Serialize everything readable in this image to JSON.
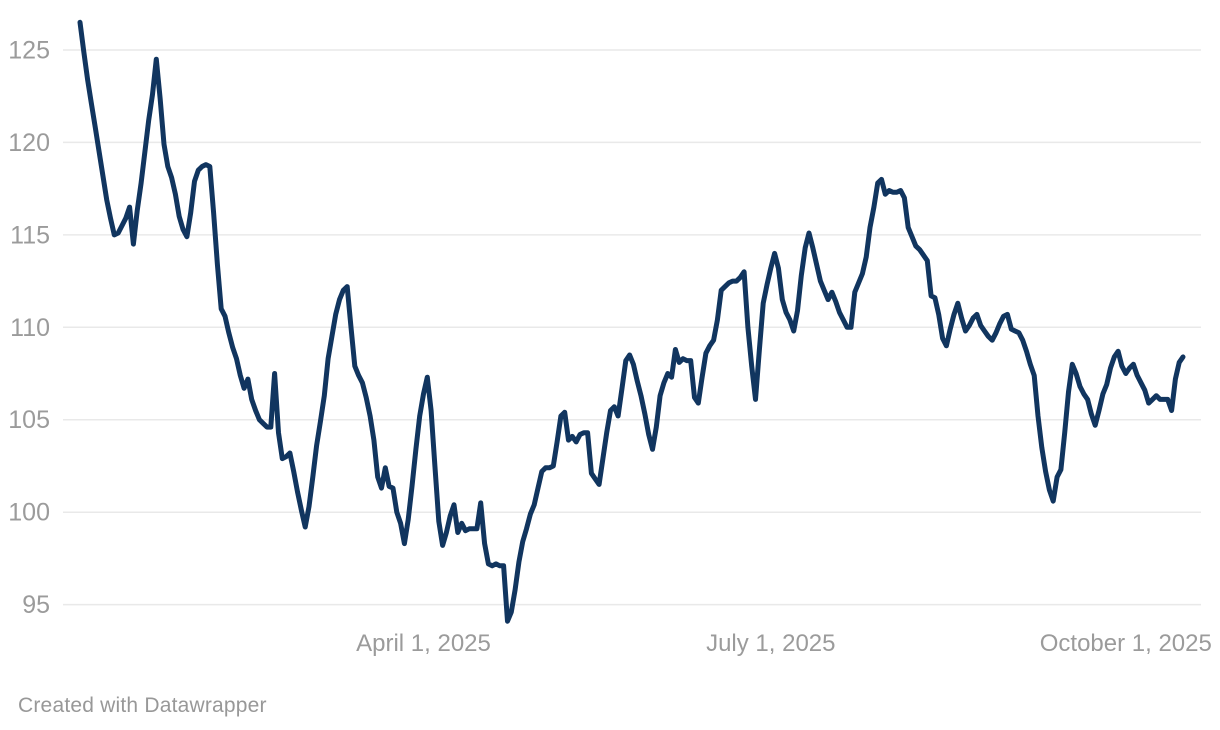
{
  "page": {
    "background": "#ffffff"
  },
  "footer": {
    "text": "Created with Datawrapper"
  },
  "theme": {
    "line_color": "#11355f",
    "grid_color": "#e9e9e9",
    "axis_label_color": "#9b9b9b",
    "footer_color": "#989898"
  },
  "chart_data": {
    "type": "line",
    "title": "",
    "xlabel": "",
    "ylabel": "",
    "grid": true,
    "legend": false,
    "y_axis": {
      "ticks": [
        125,
        120,
        115,
        110,
        105,
        100,
        95
      ],
      "range_shown": [
        95,
        125
      ]
    },
    "x_axis": {
      "ticks": [
        {
          "label": "April 1, 2025",
          "day": 90
        },
        {
          "label": "July 1, 2025",
          "day": 181
        },
        {
          "label": "October 1, 2025",
          "day": 274
        }
      ],
      "unit": "days since first observation (daily series, Jan-Oct 2025)"
    },
    "series": [
      {
        "name": "index value",
        "day_start": 0,
        "day_step": 1,
        "values": [
          126.5,
          124.9,
          123.4,
          122.1,
          120.8,
          119.5,
          118.2,
          116.9,
          115.9,
          115.0,
          115.1,
          115.5,
          115.9,
          116.5,
          114.5,
          116.3,
          117.8,
          119.5,
          121.2,
          122.6,
          124.5,
          122.4,
          119.9,
          118.7,
          118.1,
          117.2,
          116.0,
          115.3,
          114.9,
          116.2,
          117.9,
          118.5,
          118.7,
          118.8,
          118.7,
          116.2,
          113.4,
          111.0,
          110.6,
          109.7,
          108.9,
          108.3,
          107.4,
          106.7,
          107.2,
          106.1,
          105.5,
          105.0,
          104.8,
          104.6,
          104.6,
          107.5,
          104.3,
          102.9,
          103.0,
          103.2,
          102.2,
          101.1,
          100.1,
          99.2,
          100.3,
          101.9,
          103.6,
          104.9,
          106.3,
          108.3,
          109.5,
          110.7,
          111.5,
          112.0,
          112.2,
          110.0,
          107.9,
          107.4,
          107.0,
          106.2,
          105.2,
          103.9,
          101.9,
          101.3,
          102.4,
          101.4,
          101.3,
          100.0,
          99.4,
          98.3,
          99.6,
          101.4,
          103.4,
          105.2,
          106.4,
          107.3,
          105.5,
          102.5,
          99.5,
          98.2,
          98.9,
          99.8,
          100.4,
          98.9,
          99.4,
          99.0,
          99.1,
          99.1,
          99.1,
          100.5,
          98.3,
          97.2,
          97.1,
          97.2,
          97.1,
          97.1,
          94.1,
          94.6,
          95.8,
          97.3,
          98.4,
          99.1,
          99.9,
          100.4,
          101.3,
          102.2,
          102.4,
          102.4,
          102.5,
          103.8,
          105.2,
          105.4,
          103.9,
          104.1,
          103.8,
          104.2,
          104.3,
          104.3,
          102.1,
          101.8,
          101.5,
          102.9,
          104.3,
          105.5,
          105.7,
          105.2,
          106.7,
          108.2,
          108.5,
          108.0,
          107.1,
          106.3,
          105.3,
          104.2,
          103.4,
          104.6,
          106.3,
          107.0,
          107.5,
          107.3,
          108.8,
          108.1,
          108.3,
          108.2,
          108.2,
          106.2,
          105.9,
          107.3,
          108.6,
          109.0,
          109.3,
          110.4,
          112.0,
          112.2,
          112.4,
          112.5,
          112.5,
          112.7,
          113.0,
          110.0,
          107.9,
          106.1,
          108.8,
          111.3,
          112.3,
          113.2,
          114.0,
          113.2,
          111.5,
          110.8,
          110.4,
          109.8,
          110.9,
          112.8,
          114.3,
          115.1,
          114.3,
          113.4,
          112.5,
          112.0,
          111.5,
          111.9,
          111.4,
          110.8,
          110.4,
          110.0,
          110.0,
          111.9,
          112.4,
          112.9,
          113.8,
          115.4,
          116.5,
          117.8,
          118.0,
          117.2,
          117.4,
          117.3,
          117.3,
          117.4,
          117.0,
          115.4,
          114.9,
          114.4,
          114.2,
          113.9,
          113.6,
          111.7,
          111.6,
          110.7,
          109.4,
          109.0,
          109.9,
          110.7,
          111.3,
          110.5,
          109.8,
          110.1,
          110.5,
          110.7,
          110.1,
          109.8,
          109.5,
          109.3,
          109.7,
          110.2,
          110.6,
          110.7,
          109.9,
          109.8,
          109.7,
          109.3,
          108.7,
          108.0,
          107.4,
          105.2,
          103.5,
          102.2,
          101.2,
          100.6,
          101.9,
          102.3,
          104.3,
          106.5,
          108.0,
          107.5,
          106.8,
          106.4,
          106.1,
          105.3,
          104.7,
          105.5,
          106.4,
          106.9,
          107.8,
          108.4,
          108.7,
          107.9,
          107.5,
          107.8,
          108.0,
          107.4,
          107.0,
          106.6,
          105.9,
          106.1,
          106.3,
          106.1,
          106.1,
          106.1,
          105.5,
          107.2,
          108.1,
          108.4
        ]
      }
    ]
  }
}
